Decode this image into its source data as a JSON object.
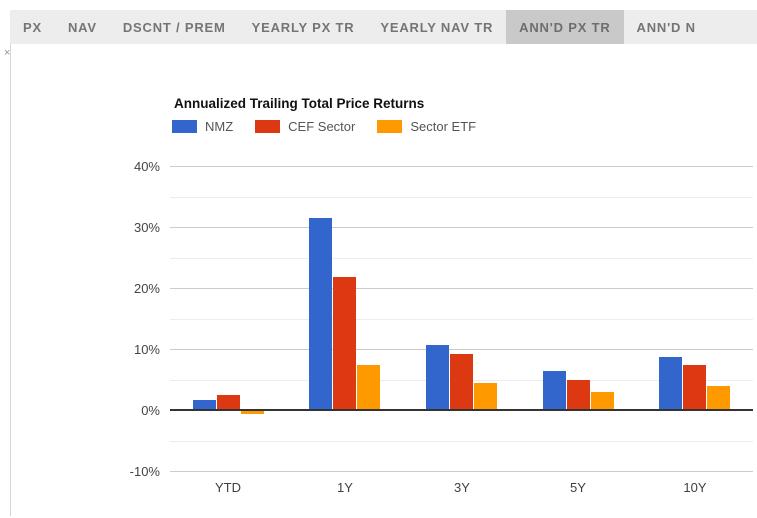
{
  "tabs": {
    "items": [
      {
        "label": "PX",
        "active": false
      },
      {
        "label": "NAV",
        "active": false
      },
      {
        "label": "DSCNT / PREM",
        "active": false
      },
      {
        "label": "YEARLY PX TR",
        "active": false
      },
      {
        "label": "YEARLY NAV TR",
        "active": false
      },
      {
        "label": "ANN'D PX TR",
        "active": true
      },
      {
        "label": "ANN'D N",
        "active": false
      }
    ],
    "colors": {
      "bar_bg": "#ededed",
      "active_bg": "#c9c9c9",
      "text": "#757575"
    }
  },
  "close_icon": {
    "glyph": "×"
  },
  "chart_data": {
    "type": "bar",
    "title": "Annualized Trailing Total Price Returns",
    "categories": [
      "YTD",
      "1Y",
      "3Y",
      "5Y",
      "10Y"
    ],
    "series": [
      {
        "name": "NMZ",
        "color": "#3366CC",
        "values": [
          1.6,
          31.5,
          10.7,
          6.4,
          8.7
        ]
      },
      {
        "name": "CEF Sector",
        "color": "#DC3912",
        "values": [
          2.5,
          21.8,
          9.2,
          5.0,
          7.4
        ]
      },
      {
        "name": "Sector ETF",
        "color": "#FF9900",
        "values": [
          -0.5,
          7.4,
          4.5,
          3.0,
          4.0
        ]
      }
    ],
    "xlabel": "",
    "ylabel": "",
    "ylim": [
      -10,
      40
    ],
    "y_major_ticks": [
      {
        "label": "40%",
        "value": 40
      },
      {
        "label": "30%",
        "value": 30
      },
      {
        "label": "20%",
        "value": 20
      },
      {
        "label": "10%",
        "value": 10
      },
      {
        "label": "0%",
        "value": 0
      },
      {
        "label": "-10%",
        "value": -10
      }
    ],
    "y_minor_ticks": [
      35,
      25,
      15,
      5,
      -5
    ],
    "grid": true,
    "legend_position": "top"
  }
}
